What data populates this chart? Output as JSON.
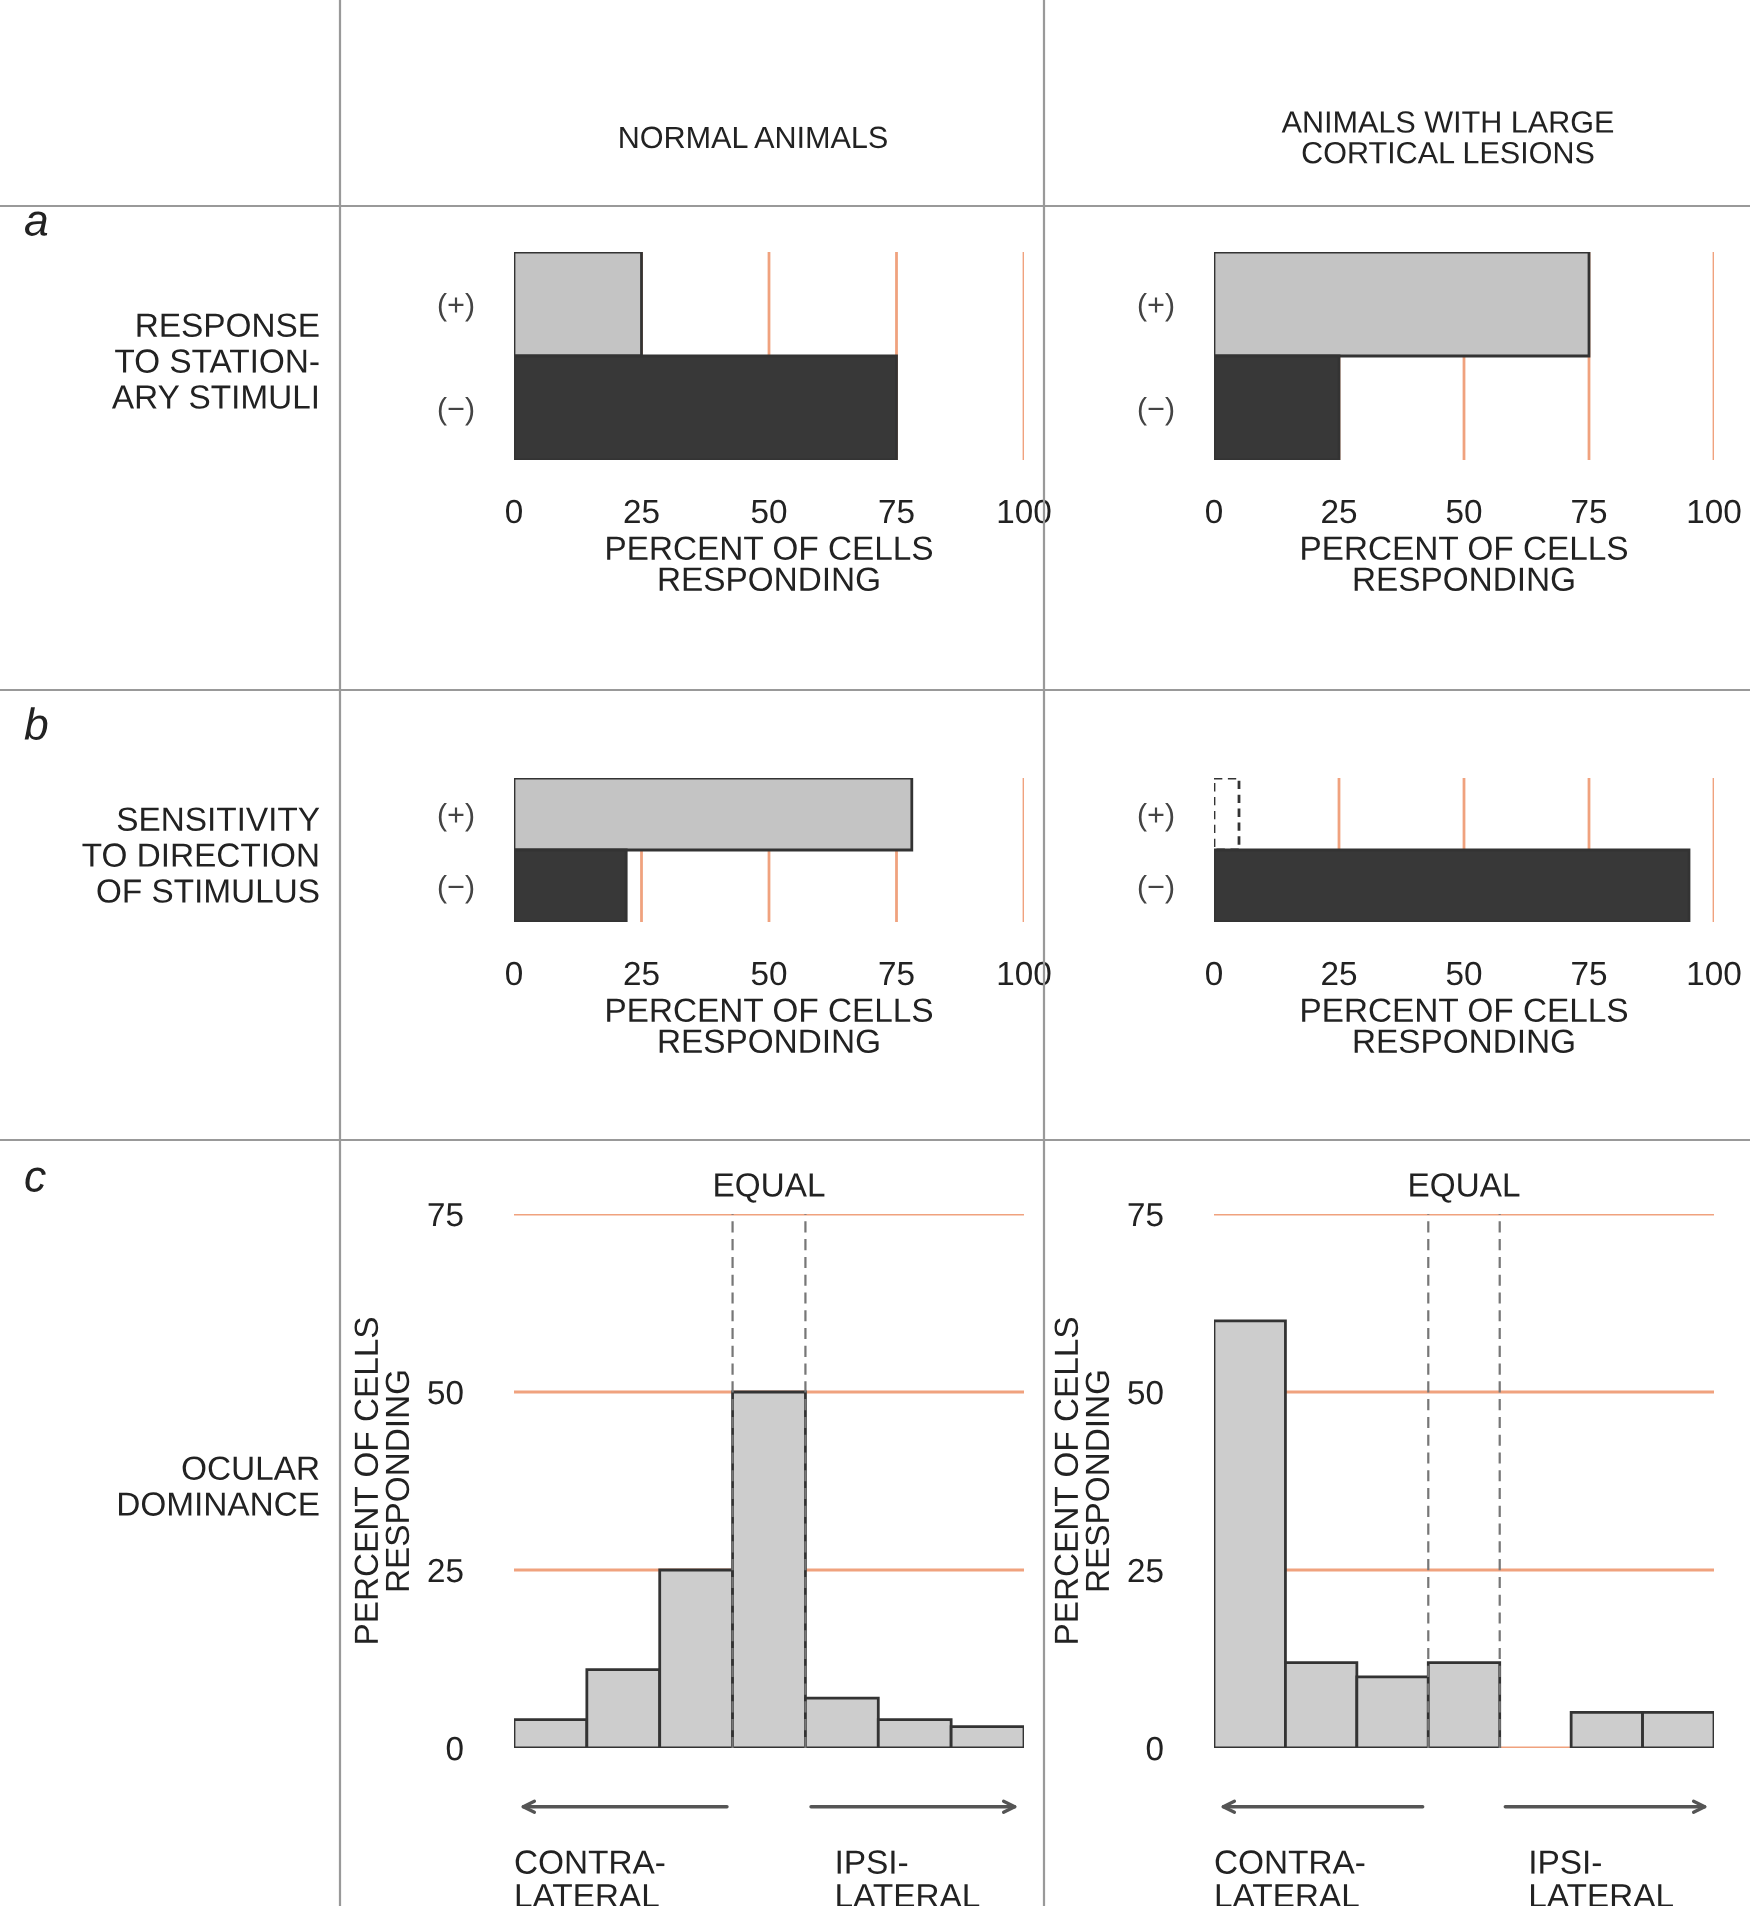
{
  "chart_data": [
    {
      "type": "bar",
      "orientation": "horizontal",
      "title": "NORMAL ANIMALS",
      "categories": [
        "(+)",
        "(−)"
      ],
      "values": [
        25,
        75
      ],
      "colors": [
        "#c4c4c4",
        "#383838"
      ],
      "xlim": [
        0,
        100
      ],
      "xticks": [
        0,
        25,
        50,
        75,
        100
      ],
      "xlabel": "PERCENT OF CELLS\nRESPONDING",
      "grid": "x",
      "annotations": [
        "a",
        "RESPONSE\nTO STATION-\nARY STIMULI"
      ]
    },
    {
      "type": "bar",
      "orientation": "horizontal",
      "title": "ANIMALS WITH LARGE\nCORTICAL LESIONS",
      "categories": [
        "(+)",
        "(−)"
      ],
      "values": [
        75,
        25
      ],
      "colors": [
        "#c4c4c4",
        "#383838"
      ],
      "xlim": [
        0,
        100
      ],
      "xticks": [
        0,
        25,
        50,
        75,
        100
      ],
      "xlabel": "PERCENT OF CELLS\nRESPONDING",
      "grid": "x"
    },
    {
      "type": "bar",
      "orientation": "horizontal",
      "categories": [
        "(+)",
        "(−)"
      ],
      "values": [
        78,
        22
      ],
      "colors": [
        "#c4c4c4",
        "#383838"
      ],
      "xlim": [
        0,
        100
      ],
      "xticks": [
        0,
        25,
        50,
        75,
        100
      ],
      "xlabel": "PERCENT OF CELLS\nRESPONDING",
      "grid": "x",
      "annotations": [
        "b",
        "SENSITIVITY\nTO DIRECTION\nOF STIMULUS"
      ]
    },
    {
      "type": "bar",
      "orientation": "horizontal",
      "categories": [
        "(+)",
        "(−)"
      ],
      "values": [
        5,
        95
      ],
      "colors": [
        "#ffffff",
        "#383838"
      ],
      "xlim": [
        0,
        100
      ],
      "xticks": [
        0,
        25,
        50,
        75,
        100
      ],
      "xlabel": "PERCENT OF CELLS\nRESPONDING",
      "grid": "x"
    },
    {
      "type": "bar",
      "categories": [
        null,
        null,
        null,
        null,
        null,
        null,
        null
      ],
      "values": [
        4,
        11,
        25,
        50,
        7,
        4,
        3
      ],
      "color": "#cdcdcd",
      "ylim": [
        0,
        75
      ],
      "yticks": [
        0,
        25,
        50,
        75
      ],
      "ylabel": "PERCENT OF CELLS\nRESPONDING",
      "grid": "y",
      "tick_labels": "y",
      "annotations": [
        "c",
        "OCULAR\nDOMINANCE",
        "CONTRA-\nLATERAL",
        "IPSI-\nLATERAL",
        "EQUAL"
      ]
    },
    {
      "type": "bar",
      "categories": [
        null,
        null,
        null,
        null,
        null,
        null,
        null
      ],
      "values": [
        60,
        12,
        10,
        12,
        0,
        5,
        5
      ],
      "color": "#cdcdcd",
      "ylim": [
        0,
        75
      ],
      "yticks": [
        0,
        25,
        50,
        75
      ],
      "ylabel": "PERCENT OF CELLS\nRESPONDING",
      "grid": "y",
      "tick_labels": "y",
      "annotations": [
        "CONTRA-\nLATERAL",
        "IPSI-\nLATERAL",
        "EQUAL"
      ]
    }
  ]
}
